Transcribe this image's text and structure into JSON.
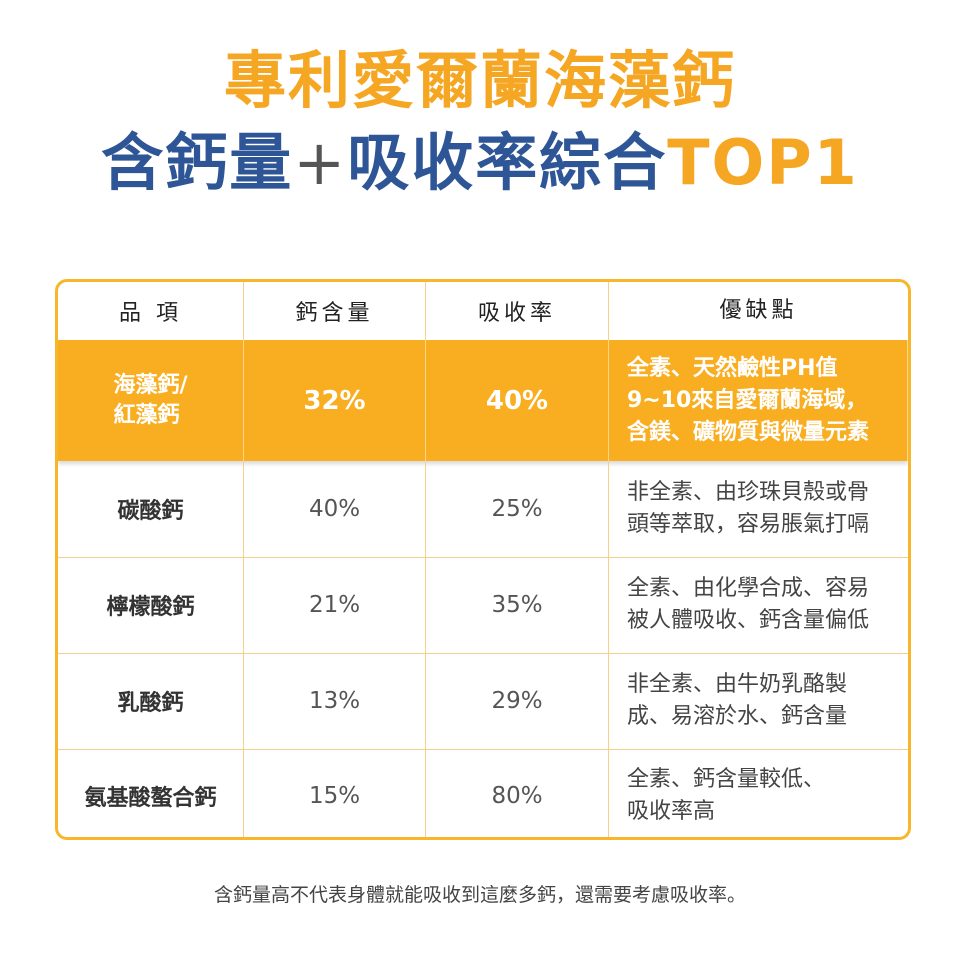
{
  "title": {
    "line1": "專利愛爾蘭海藻鈣",
    "line2_main": "含鈣量",
    "line2_plus": "+",
    "line2_rest": "吸收率綜合",
    "line2_highlight": "TOP1"
  },
  "colors": {
    "accent": "#f9ae22",
    "title_orange": "#f5a623",
    "title_blue": "#2e5596"
  },
  "table": {
    "headers": [
      "品 項",
      "鈣含量",
      "吸收率",
      "優缺點"
    ],
    "highlight_row": {
      "item": "海藻鈣/\n紅藻鈣",
      "calcium": "32%",
      "absorption": "40%",
      "notes": "全素、天然鹼性PH值\n9~10來自愛爾蘭海域，\n含鎂、礦物質與微量元素"
    },
    "rows": [
      {
        "item": "碳酸鈣",
        "calcium": "40%",
        "absorption": "25%",
        "notes": "非全素、由珍珠貝殼或骨\n頭等萃取，容易脹氣打嗝"
      },
      {
        "item": "檸檬酸鈣",
        "calcium": "21%",
        "absorption": "35%",
        "notes": "全素、由化學合成、容易\n被人體吸收、鈣含量偏低"
      },
      {
        "item": "乳酸鈣",
        "calcium": "13%",
        "absorption": "29%",
        "notes": "非全素、由牛奶乳酪製\n成、易溶於水、鈣含量"
      },
      {
        "item": "氨基酸螯合鈣",
        "calcium": "15%",
        "absorption": "80%",
        "notes": "全素、鈣含量較低、\n吸收率高"
      }
    ]
  },
  "footer": "含鈣量高不代表身體就能吸收到這麼多鈣，還需要考慮吸收率。"
}
